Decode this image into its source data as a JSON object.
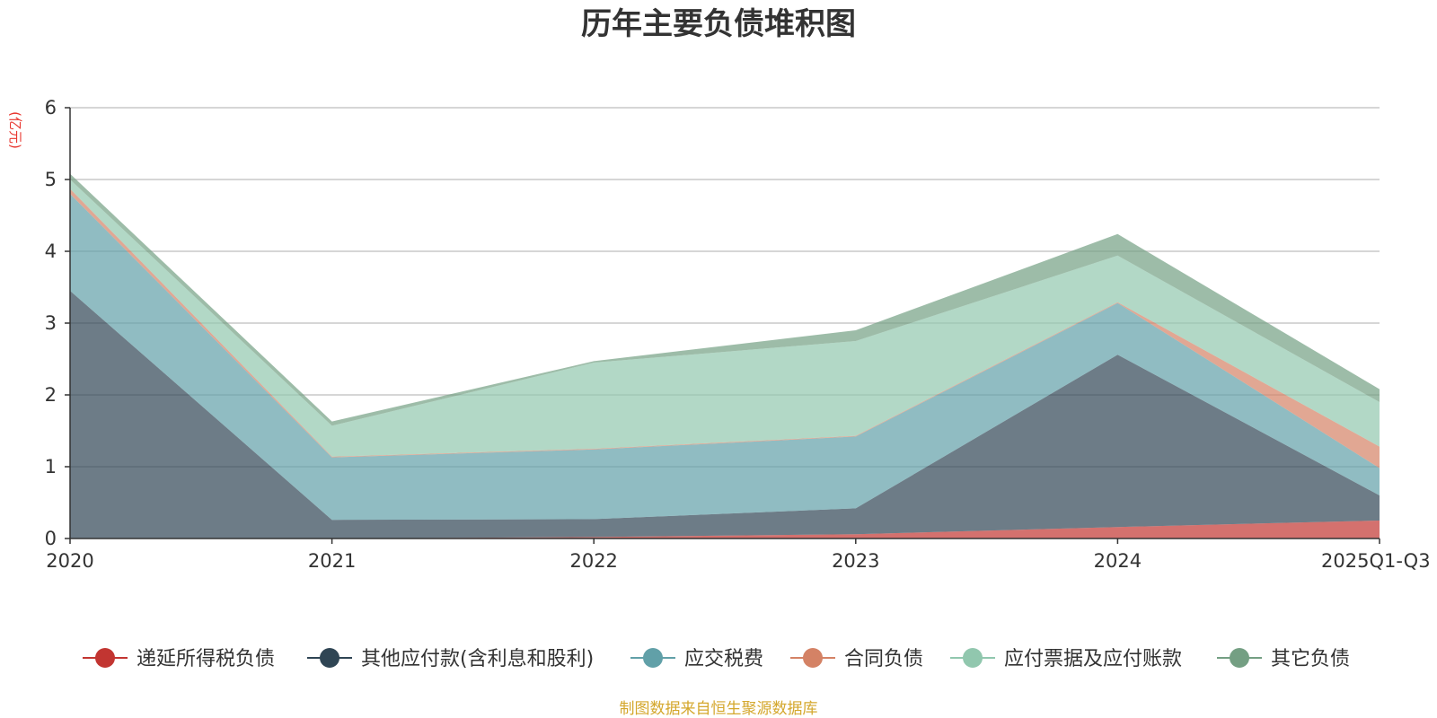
{
  "chart_data": {
    "type": "area",
    "stacked": true,
    "title": "历年主要负债堆积图",
    "unit": "(亿元)",
    "categories": [
      "2020",
      "2021",
      "2022",
      "2023",
      "2024",
      "2025Q1-Q3"
    ],
    "ylim": [
      0,
      6
    ],
    "yticks": [
      0,
      1,
      2,
      3,
      4,
      5,
      6
    ],
    "grid": true,
    "legend_position": "bottom",
    "series": [
      {
        "name": "递延所得税负债",
        "color": "#c23531",
        "values": [
          0.0,
          0.0,
          0.02,
          0.06,
          0.16,
          0.25
        ]
      },
      {
        "name": "其他应付款(含利息和股利)",
        "color": "#2f4554",
        "values": [
          3.45,
          0.26,
          0.25,
          0.36,
          2.4,
          0.35
        ]
      },
      {
        "name": "应交税费",
        "color": "#61a0a8",
        "values": [
          1.35,
          0.87,
          0.97,
          1.0,
          0.72,
          0.38
        ]
      },
      {
        "name": "合同负债",
        "color": "#d48265",
        "values": [
          0.07,
          0.01,
          0.01,
          0.01,
          0.01,
          0.3
        ]
      },
      {
        "name": "应付票据及应付账款",
        "color": "#91c7ae",
        "values": [
          0.13,
          0.43,
          1.2,
          1.32,
          0.65,
          0.62
        ]
      },
      {
        "name": "其它负债",
        "color": "#749f83",
        "values": [
          0.08,
          0.06,
          0.02,
          0.15,
          0.3,
          0.18
        ]
      }
    ],
    "source": "制图数据来自恒生聚源数据库"
  }
}
